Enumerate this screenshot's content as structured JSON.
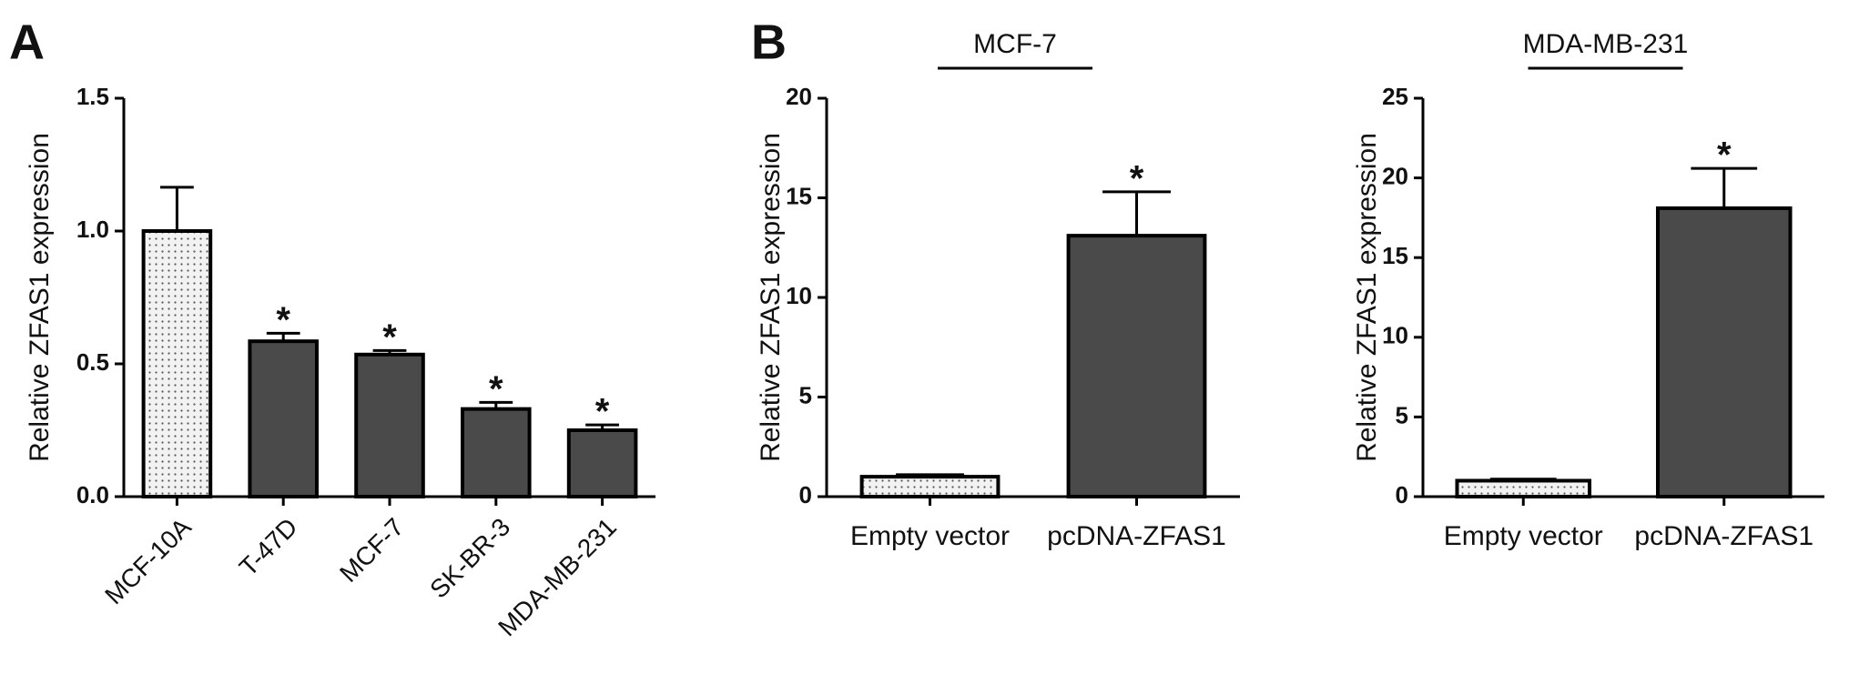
{
  "chart_data": [
    {
      "type": "bar",
      "panel_label": "A",
      "ylabel": "Relative ZFAS1 expression",
      "categories": [
        "MCF-10A",
        "T-47D",
        "MCF-7",
        "SK-BR-3",
        "MDA-MB-231"
      ],
      "values": [
        1.0,
        0.585,
        0.535,
        0.33,
        0.25
      ],
      "errors": [
        0.165,
        0.03,
        0.015,
        0.025,
        0.02
      ],
      "colors": [
        "#f2f2f2",
        "#4a4a4a",
        "#4a4a4a",
        "#4a4a4a",
        "#4a4a4a"
      ],
      "annotations": [
        {
          "category": "T-47D",
          "text": "*"
        },
        {
          "category": "MCF-7",
          "text": "*"
        },
        {
          "category": "SK-BR-3",
          "text": "*"
        },
        {
          "category": "MDA-MB-231",
          "text": "*"
        }
      ],
      "ylim": [
        0,
        1.5
      ],
      "yticks": [
        {
          "value": 0,
          "label": "0.0"
        },
        {
          "value": 0.5,
          "label": "0.5"
        },
        {
          "value": 1,
          "label": "1.0"
        },
        {
          "value": 1.5,
          "label": "1.5"
        }
      ]
    },
    {
      "type": "bar",
      "panel_label": "B",
      "title": "MCF-7",
      "ylabel": "Relative ZFAS1 expression",
      "categories": [
        "Empty vector",
        "pcDNA-ZFAS1"
      ],
      "values": [
        1.0,
        13.1
      ],
      "errors": [
        0.1,
        2.2
      ],
      "colors": [
        "#f2f2f2",
        "#4a4a4a"
      ],
      "annotations": [
        {
          "category": "pcDNA-ZFAS1",
          "text": "*"
        }
      ],
      "ylim": [
        0,
        20
      ],
      "yticks": [
        0,
        5,
        10,
        15,
        20
      ]
    },
    {
      "type": "bar",
      "title": "MDA-MB-231",
      "ylabel": "Relative ZFAS1 expression",
      "categories": [
        "Empty vector",
        "pcDNA-ZFAS1"
      ],
      "values": [
        1.0,
        18.1
      ],
      "errors": [
        0.1,
        2.5
      ],
      "colors": [
        "#f2f2f2",
        "#4a4a4a"
      ],
      "annotations": [
        {
          "category": "pcDNA-ZFAS1",
          "text": "*"
        }
      ],
      "ylim": [
        0,
        25
      ],
      "yticks": [
        0,
        5,
        10,
        15,
        20,
        25
      ]
    }
  ]
}
